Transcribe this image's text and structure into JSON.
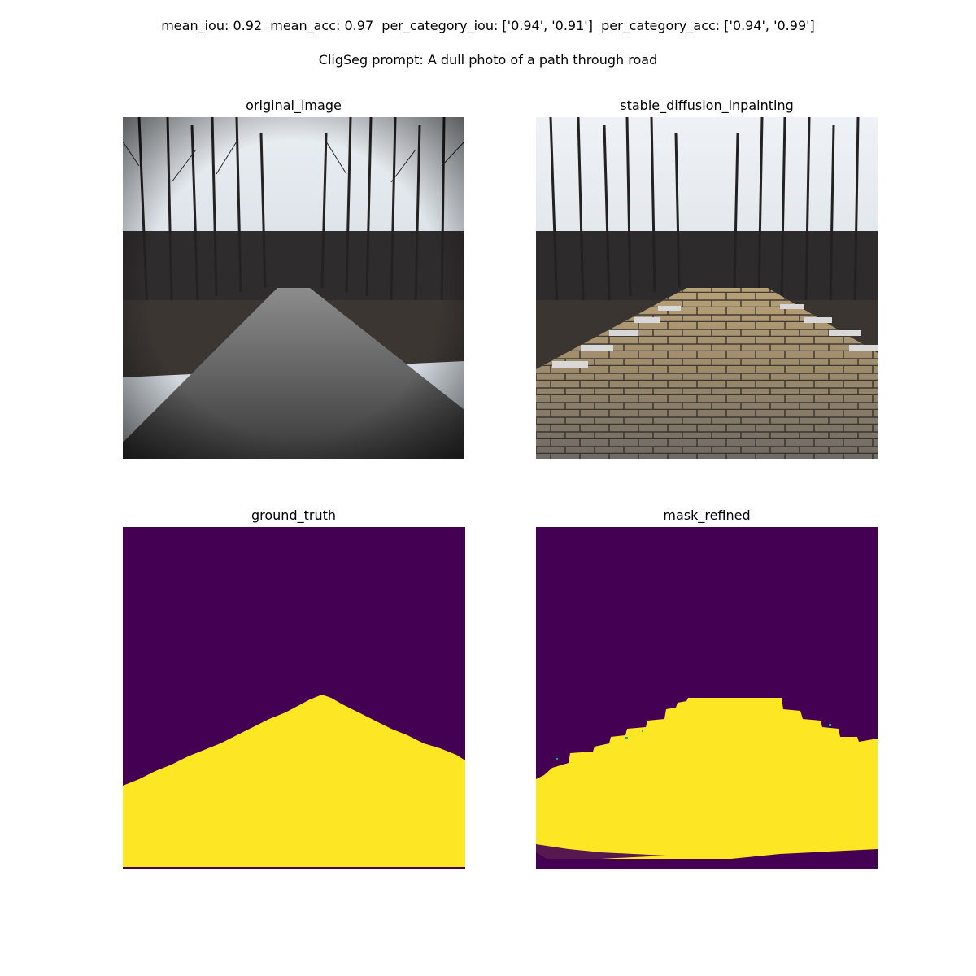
{
  "header": {
    "metrics_line": "mean_iou: 0.92  mean_acc: 0.97  per_category_iou: ['0.94', '0.91']  per_category_acc: ['0.94', '0.99']",
    "prompt_line": "CligSeg prompt: A dull photo of a path through road"
  },
  "panels": {
    "original": {
      "title": "original_image"
    },
    "inpainting": {
      "title": "stable_diffusion_inpainting"
    },
    "ground_truth": {
      "title": "ground_truth"
    },
    "mask_refined": {
      "title": "mask_refined"
    }
  },
  "colors": {
    "mask_background": "#440154",
    "mask_foreground": "#fde725",
    "mask_edge": "#21a883"
  }
}
